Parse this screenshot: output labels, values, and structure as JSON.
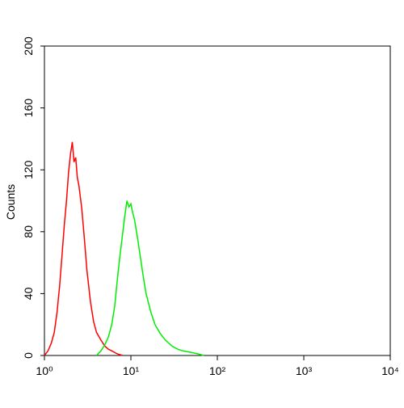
{
  "chart_data": {
    "type": "line",
    "y_label": "Counts",
    "log_x": true,
    "xlim": [
      1,
      10000
    ],
    "xticks": [
      {
        "value": 1,
        "label": "10⁰"
      },
      {
        "value": 10,
        "label": "10¹"
      },
      {
        "value": 100,
        "label": "10²"
      },
      {
        "value": 1000,
        "label": "10³"
      },
      {
        "value": 10000,
        "label": "10⁴"
      }
    ],
    "ylim": [
      0,
      200
    ],
    "yticks": [
      0,
      40,
      80,
      120,
      160,
      200
    ],
    "series": [
      {
        "color": "#ff0000",
        "x": [
          1.0,
          1.1,
          1.2,
          1.3,
          1.4,
          1.5,
          1.6,
          1.7,
          1.8,
          1.9,
          2.0,
          2.1,
          2.2,
          2.3,
          2.4,
          2.5,
          2.7,
          2.9,
          3.1,
          3.4,
          3.7,
          4.0,
          4.5,
          5.0,
          5.5,
          6.0,
          7.0,
          8.0
        ],
        "values": [
          0,
          3,
          8,
          15,
          28,
          45,
          65,
          85,
          100,
          118,
          130,
          138,
          125,
          128,
          115,
          110,
          95,
          75,
          55,
          35,
          22,
          15,
          10,
          6,
          4,
          3,
          1,
          0
        ]
      },
      {
        "color": "#00ee00",
        "x": [
          4.0,
          4.5,
          5,
          5.5,
          6,
          6.5,
          7,
          7.5,
          8,
          8.5,
          9,
          9.5,
          10,
          10.5,
          11,
          12,
          13,
          14,
          15,
          17,
          19,
          22,
          25,
          30,
          35,
          40,
          50,
          60,
          70
        ],
        "values": [
          0,
          3,
          7,
          12,
          20,
          32,
          50,
          65,
          78,
          90,
          100,
          96,
          98,
          92,
          88,
          75,
          62,
          50,
          40,
          28,
          20,
          14,
          10,
          6,
          4,
          3,
          2,
          1,
          0
        ]
      }
    ]
  }
}
